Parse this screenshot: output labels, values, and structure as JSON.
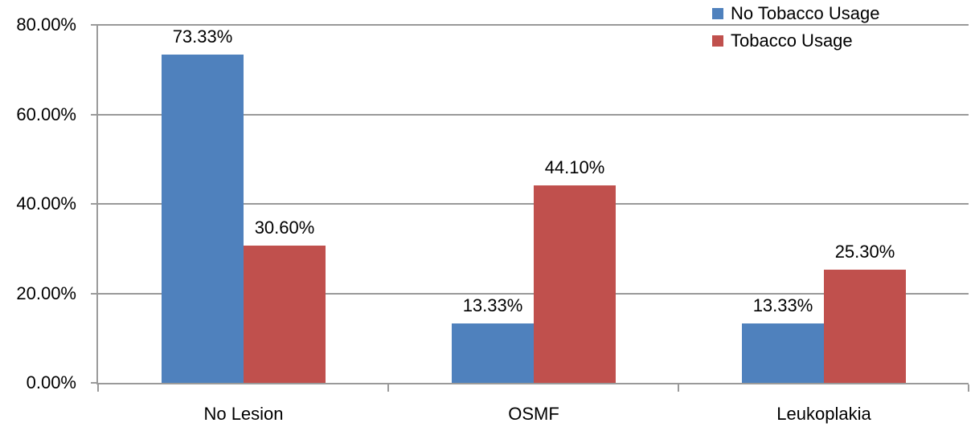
{
  "chart_data": {
    "type": "bar",
    "title": "",
    "categories": [
      "No Lesion",
      "OSMF",
      "Leukoplakia"
    ],
    "series": [
      {
        "name": "No Tobacco Usage",
        "color": "#4F81BD",
        "values": [
          73.33,
          13.33,
          13.33
        ],
        "data_labels": [
          "73.33%",
          "13.33%",
          "13.33%"
        ]
      },
      {
        "name": "Tobacco Usage",
        "color": "#C0504D",
        "values": [
          30.6,
          44.1,
          25.3
        ],
        "data_labels": [
          "30.60%",
          "44.10%",
          "25.30%"
        ]
      }
    ],
    "y_axis": {
      "min": 0,
      "max": 80,
      "step": 20,
      "tick_labels": [
        "0.00%",
        "20.00%",
        "40.00%",
        "60.00%",
        "80.00%"
      ]
    },
    "xlabel": "",
    "ylabel": "",
    "grid": true,
    "legend_position": "top-right",
    "colors": {
      "gridline": "#999999",
      "axis": "#9a9a9a",
      "text": "#000000",
      "background": "#ffffff"
    }
  }
}
